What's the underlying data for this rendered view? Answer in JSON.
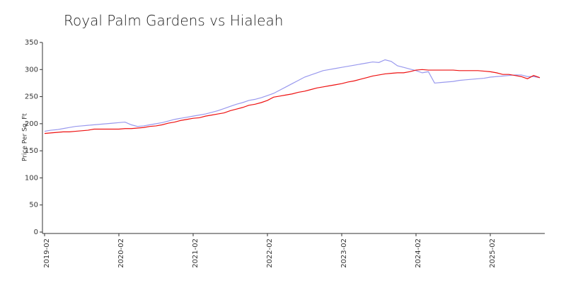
{
  "chart_data": {
    "type": "line",
    "title": "Royal Palm Gardens vs Hialeah",
    "ylabel": "Price Per Sq. Ft",
    "categories": [
      "2019-02",
      null,
      null,
      null,
      null,
      null,
      null,
      null,
      null,
      null,
      null,
      null,
      "2020-02",
      null,
      null,
      null,
      null,
      null,
      null,
      null,
      null,
      null,
      null,
      null,
      "2021-02",
      null,
      null,
      null,
      null,
      null,
      null,
      null,
      null,
      null,
      null,
      null,
      "2022-02",
      null,
      null,
      null,
      null,
      null,
      null,
      null,
      null,
      null,
      null,
      null,
      "2023-02",
      null,
      null,
      null,
      null,
      null,
      null,
      null,
      null,
      null,
      null,
      null,
      "2024-02",
      null,
      null,
      null,
      null,
      null,
      null,
      null,
      null,
      null,
      null,
      null,
      "2025-02",
      null,
      null,
      null,
      null,
      null,
      null,
      null,
      null
    ],
    "series": [
      {
        "color": "#ee1111",
        "values": [
          182,
          183,
          184,
          185,
          185,
          186,
          187,
          188,
          190,
          190,
          190,
          190,
          190,
          191,
          191,
          192,
          193,
          195,
          196,
          198,
          201,
          203,
          206,
          208,
          210,
          211,
          214,
          216,
          218,
          220,
          224,
          227,
          230,
          234,
          236,
          239,
          243,
          249,
          251,
          253,
          255,
          258,
          260,
          263,
          266,
          268,
          270,
          272,
          274,
          277,
          279,
          282,
          285,
          288,
          290,
          292,
          293,
          294,
          294,
          296,
          299,
          300,
          299,
          299,
          299,
          299,
          299,
          298,
          298,
          298,
          298,
          297,
          296,
          294,
          291,
          291,
          289,
          287,
          283,
          289,
          285
        ]
      },
      {
        "color": "#9999ee",
        "values": [
          186,
          188,
          189,
          191,
          193,
          195,
          196,
          197,
          198,
          199,
          200,
          201,
          202,
          203,
          198,
          195,
          196,
          198,
          200,
          202,
          205,
          208,
          210,
          212,
          214,
          216,
          218,
          221,
          224,
          228,
          232,
          236,
          239,
          243,
          245,
          248,
          252,
          256,
          262,
          268,
          274,
          280,
          286,
          290,
          294,
          298,
          300,
          302,
          304,
          306,
          308,
          310,
          312,
          314,
          313,
          318,
          315,
          307,
          304,
          301,
          298,
          294,
          296,
          275,
          276,
          277,
          278,
          280,
          281,
          282,
          283,
          284,
          286,
          287,
          288,
          289,
          290,
          290,
          287,
          287,
          285
        ]
      }
    ],
    "ylim": [
      0,
      350
    ],
    "yticks": [
      0,
      50,
      100,
      150,
      200,
      250,
      300,
      350
    ]
  }
}
